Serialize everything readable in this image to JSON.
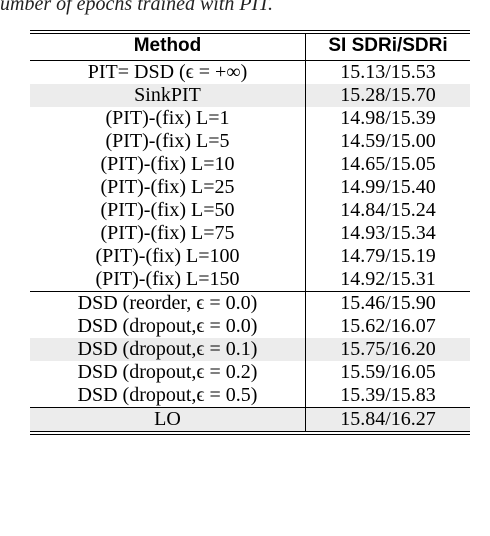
{
  "caption_fragment": "umber of epochs trained with PIT.",
  "table": {
    "headers": {
      "method": "Method",
      "score": "SI SDRi/SDRi"
    },
    "section1": [
      {
        "method": "PIT= DSD (ϵ = +∞)",
        "score": "15.13/15.53",
        "shaded": false
      },
      {
        "method": "SinkPIT",
        "score": "15.28/15.70",
        "shaded": true
      },
      {
        "method": "(PIT)-(fix) L=1",
        "score": "14.98/15.39",
        "shaded": false
      },
      {
        "method": "(PIT)-(fix) L=5",
        "score": "14.59/15.00",
        "shaded": false
      },
      {
        "method": "(PIT)-(fix) L=10",
        "score": "14.65/15.05",
        "shaded": false
      },
      {
        "method": "(PIT)-(fix) L=25",
        "score": "14.99/15.40",
        "shaded": false
      },
      {
        "method": "(PIT)-(fix) L=50",
        "score": "14.84/15.24",
        "shaded": false
      },
      {
        "method": "(PIT)-(fix) L=75",
        "score": "14.93/15.34",
        "shaded": false
      },
      {
        "method": "(PIT)-(fix) L=100",
        "score": "14.79/15.19",
        "shaded": false
      },
      {
        "method": "(PIT)-(fix) L=150",
        "score": "14.92/15.31",
        "shaded": false
      }
    ],
    "section2": [
      {
        "method": "DSD (reorder, ϵ = 0.0)",
        "score": "15.46/15.90",
        "shaded": false
      },
      {
        "method": "DSD (dropout,ϵ = 0.0)",
        "score": "15.62/16.07",
        "shaded": false
      },
      {
        "method": "DSD (dropout,ϵ = 0.1)",
        "score": "15.75/16.20",
        "shaded": true
      },
      {
        "method": "DSD (dropout,ϵ = 0.2)",
        "score": "15.59/16.05",
        "shaded": false
      },
      {
        "method": "DSD (dropout,ϵ = 0.5)",
        "score": "15.39/15.83",
        "shaded": false
      }
    ],
    "final_row": {
      "method": "LO",
      "score": "15.84/16.27"
    }
  }
}
